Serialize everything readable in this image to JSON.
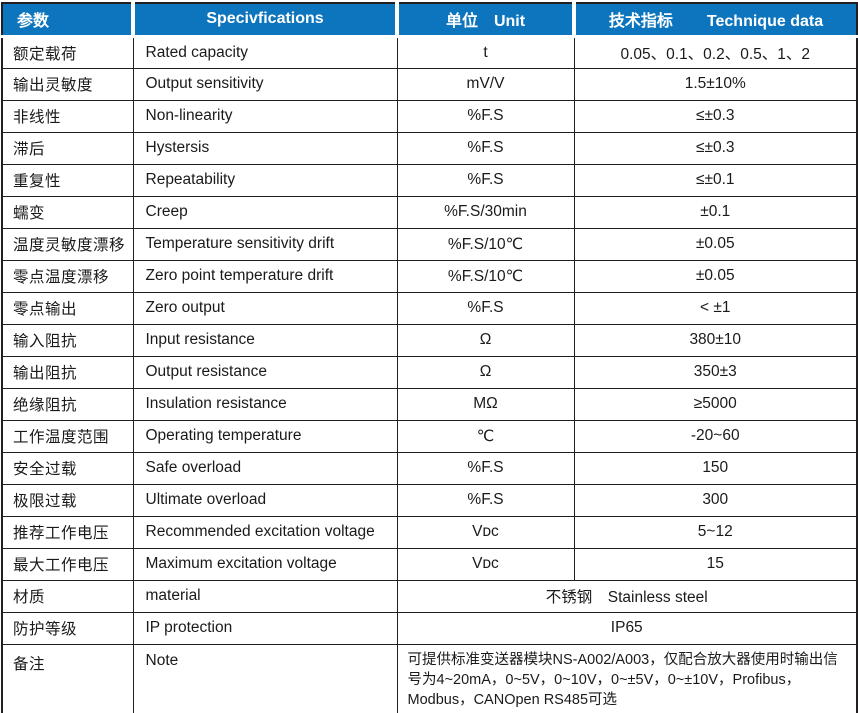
{
  "colors": {
    "header_bg": "#0D75BD",
    "header_text": "#FFFFFF",
    "border": "#231F20",
    "text": "#1A1A1A"
  },
  "table": {
    "header": {
      "param": "参数",
      "spec": "Specivfications",
      "unit_zh": "单位",
      "unit_en": "Unit",
      "tech_zh": "技术指标",
      "tech_en": "Technique data"
    },
    "rows": [
      {
        "param": "额定载荷",
        "spec": "Rated capacity",
        "unit": "t",
        "value": "0.05、0.1、0.2、0.5、1、2"
      },
      {
        "param": "输出灵敏度",
        "spec": "Output sensitivity",
        "unit": "mV/V",
        "value": "1.5±10%"
      },
      {
        "param": "非线性",
        "spec": "Non-linearity",
        "unit": "%F.S",
        "value": "≤±0.3"
      },
      {
        "param": "滞后",
        "spec": "Hystersis",
        "unit": "%F.S",
        "value": "≤±0.3"
      },
      {
        "param": "重复性",
        "spec": "Repeatability",
        "unit": "%F.S",
        "value": "≤±0.1"
      },
      {
        "param": "蠕变",
        "spec": "Creep",
        "unit": "%F.S/30min",
        "value": "±0.1"
      },
      {
        "param": "温度灵敏度漂移",
        "spec": "Temperature sensitivity drift",
        "unit": "%F.S/10℃",
        "value": "±0.05"
      },
      {
        "param": "零点温度漂移",
        "spec": "Zero point temperature drift",
        "unit": "%F.S/10℃",
        "value": "±0.05"
      },
      {
        "param": "零点输出",
        "spec": "Zero output",
        "unit": "%F.S",
        "value": "< ±1"
      },
      {
        "param": "输入阻抗",
        "spec": "Input resistance",
        "unit": "Ω",
        "value": "380±10"
      },
      {
        "param": "输出阻抗",
        "spec": "Output resistance",
        "unit": "Ω",
        "value": "350±3"
      },
      {
        "param": "绝缘阻抗",
        "spec": "Insulation resistance",
        "unit": "MΩ",
        "value": "≥5000"
      },
      {
        "param": "工作温度范围",
        "spec": "Operating temperature",
        "unit": "℃",
        "value": "-20~60"
      },
      {
        "param": "安全过载",
        "spec": "Safe overload",
        "unit": "%F.S",
        "value": "150"
      },
      {
        "param": "极限过载",
        "spec": "Ultimate overload",
        "unit": "%F.S",
        "value": "300"
      },
      {
        "param": "推荐工作电压",
        "spec": "Recommended excitation voltage",
        "unit": "Vᴅᴄ",
        "value": "5~12"
      },
      {
        "param": "最大工作电压",
        "spec": "Maximum excitation voltage",
        "unit": "Vᴅᴄ",
        "value": "15"
      }
    ],
    "merged_rows": [
      {
        "param": "材质",
        "spec": "material",
        "value": "不锈钢　Stainless steel"
      },
      {
        "param": "防护等级",
        "spec": "IP protection",
        "value": "IP65"
      },
      {
        "param": "备注",
        "spec": "Note",
        "value": "可提供标准变送器模块NS-A002/A003，仅配合放大器使用时输出信号为4~20mA，0~5V，0~10V，0~±5V，0~±10V，Profibus，Modbus，CANOpen  RS485可选"
      }
    ]
  }
}
